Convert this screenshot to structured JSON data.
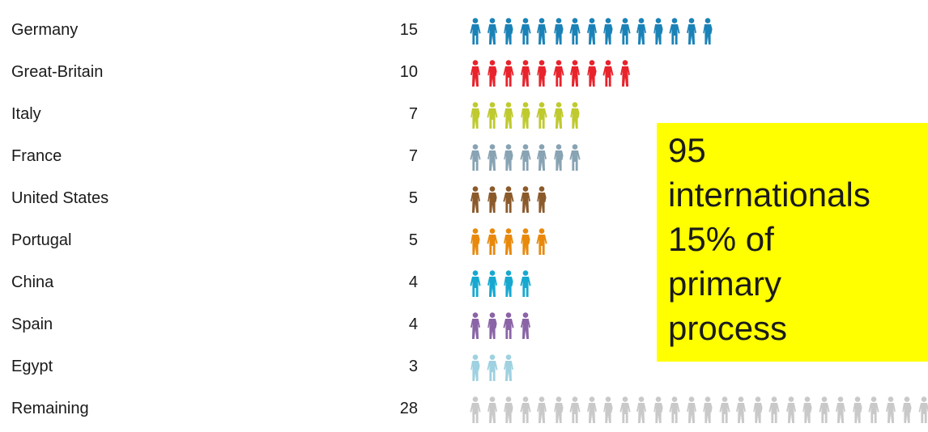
{
  "chart_data": {
    "type": "bar",
    "categories": [
      "Germany",
      "Great-Britain",
      "Italy",
      "France",
      "United States",
      "Portugal",
      "China",
      "Spain",
      "Egypt",
      "Remaining"
    ],
    "values": [
      15,
      10,
      7,
      7,
      5,
      5,
      4,
      4,
      3,
      28
    ],
    "colors": [
      "#1a82b7",
      "#e8232c",
      "#bfca2e",
      "#88a3b3",
      "#8b5a2b",
      "#e8890c",
      "#17a8d0",
      "#8a64a6",
      "#9fd1e0",
      "#c9c9c9"
    ],
    "mark": "person-icon",
    "annotation": [
      "95",
      "internationals",
      "15% of",
      "primary",
      "process"
    ]
  }
}
